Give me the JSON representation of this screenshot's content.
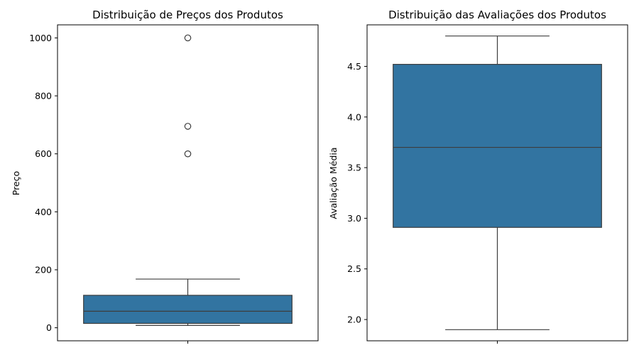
{
  "chart_data": [
    {
      "type": "box",
      "title": "Distribuição de Preços dos Produtos",
      "xlabel": "",
      "ylabel": "Preço",
      "ylim": [
        -45,
        1045
      ],
      "yticks": [
        0,
        200,
        400,
        600,
        800,
        1000
      ],
      "ytick_labels": [
        "0",
        "200",
        "400",
        "600",
        "800",
        "1000"
      ],
      "box": {
        "whisker_low": 8,
        "q1": 15,
        "median": 57,
        "q3": 112,
        "whisker_high": 168
      },
      "outliers": [
        600,
        695,
        1000
      ],
      "color": "#3274a1"
    },
    {
      "type": "box",
      "title": "Distribuição das Avaliações dos Produtos",
      "xlabel": "",
      "ylabel": "Avaliação Média",
      "ylim": [
        1.79,
        4.91
      ],
      "yticks": [
        2.0,
        2.5,
        3.0,
        3.5,
        4.0,
        4.5
      ],
      "ytick_labels": [
        "2.0",
        "2.5",
        "3.0",
        "3.5",
        "4.0",
        "4.5"
      ],
      "box": {
        "whisker_low": 1.9,
        "q1": 2.91,
        "median": 3.7,
        "q3": 4.52,
        "whisker_high": 4.8
      },
      "outliers": [],
      "color": "#3274a1"
    }
  ]
}
